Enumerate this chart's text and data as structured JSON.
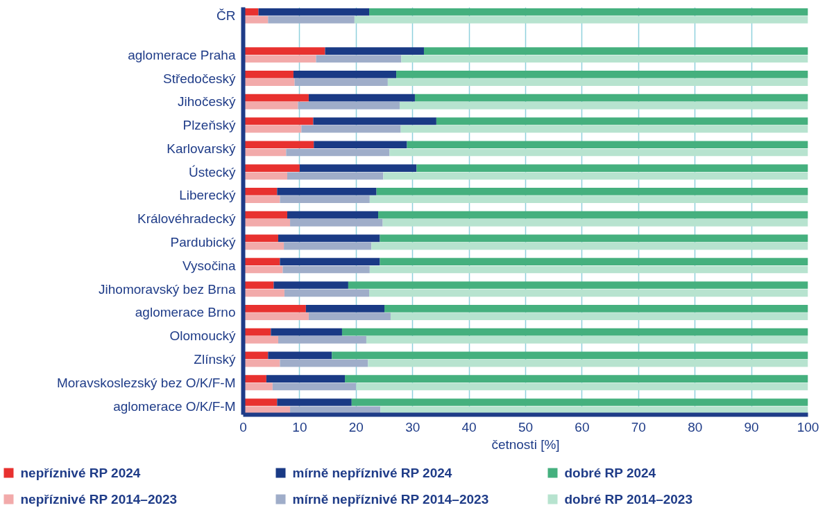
{
  "chart_data": {
    "type": "bar",
    "orientation": "horizontal",
    "stacked": true,
    "xlabel": "četnosti [%]",
    "categories": [
      "ČR",
      null,
      null,
      null,
      null,
      "aglomerace Praha",
      null,
      null,
      "Středočeský",
      null,
      null,
      "Jihočeský",
      null,
      null,
      "Plzeňský",
      null,
      null,
      "Karlovarský",
      null,
      null,
      "Ústecký",
      null,
      null,
      "Liberecký",
      null,
      null,
      "Královéhradecký",
      null,
      null,
      "Pardubický",
      null,
      null,
      "Vysočina",
      null,
      null,
      "Jihomoravský bez Brna",
      null,
      null,
      "aglomerace Brno",
      null,
      null,
      "Olomoucký",
      null,
      null,
      "Zlínský",
      null,
      null,
      "Moravskoslezský bez O/K/F-M",
      null,
      null,
      "aglomerace O/K/F-M",
      null
    ],
    "series": [
      {
        "name": "nepříznivé RP 2024",
        "color": "#e8312f",
        "values": [
          2.7,
          null,
          null,
          null,
          null,
          14.5,
          null,
          null,
          8.9,
          null,
          null,
          11.6,
          null,
          null,
          12.4,
          null,
          null,
          12.5,
          null,
          null,
          10.0,
          null,
          null,
          6.0,
          null,
          null,
          7.8,
          null,
          null,
          6.2,
          null,
          null,
          6.5,
          null,
          null,
          5.4,
          null,
          null,
          11.1,
          null,
          null,
          4.9,
          null,
          null,
          4.4,
          null,
          null,
          4.1,
          null,
          null,
          6.0,
          null
        ]
      },
      {
        "name": "mírně nepříznivé RP 2024",
        "color": "#1a3a85",
        "values": [
          19.6,
          null,
          null,
          null,
          null,
          17.5,
          null,
          null,
          18.2,
          null,
          null,
          18.8,
          null,
          null,
          21.8,
          null,
          null,
          16.5,
          null,
          null,
          20.7,
          null,
          null,
          17.6,
          null,
          null,
          16.1,
          null,
          null,
          18.0,
          null,
          null,
          17.7,
          null,
          null,
          13.2,
          null,
          null,
          13.9,
          null,
          null,
          12.6,
          null,
          null,
          11.3,
          null,
          null,
          13.9,
          null,
          null,
          13.2,
          null
        ]
      },
      {
        "name": "dobré RP 2024",
        "color": "#45b07e",
        "values": [
          77.7,
          null,
          null,
          null,
          null,
          68.0,
          null,
          null,
          72.9,
          null,
          null,
          69.6,
          null,
          null,
          65.8,
          null,
          null,
          71.0,
          null,
          null,
          69.3,
          null,
          null,
          76.4,
          null,
          null,
          76.1,
          null,
          null,
          75.8,
          null,
          null,
          75.8,
          null,
          null,
          81.4,
          null,
          null,
          75.0,
          null,
          null,
          82.5,
          null,
          null,
          84.3,
          null,
          null,
          82.0,
          null,
          null,
          80.8,
          null
        ]
      },
      {
        "name": "nepříznivé RP 2014–2023",
        "color": "#f2aaaa",
        "values": [
          null,
          4.4,
          null,
          null,
          null,
          null,
          12.9,
          null,
          null,
          9.1,
          null,
          null,
          9.7,
          null,
          null,
          10.3,
          null,
          null,
          7.6,
          null,
          null,
          7.8,
          null,
          null,
          6.5,
          null,
          null,
          8.3,
          null,
          null,
          7.2,
          null,
          null,
          7.0,
          null,
          null,
          7.3,
          null,
          null,
          11.6,
          null,
          null,
          6.2,
          null,
          null,
          6.5,
          null,
          null,
          5.2,
          null,
          null,
          8.3
        ]
      },
      {
        "name": "mírně nepříznivé RP 2014–2023",
        "color": "#9fadc9",
        "values": [
          null,
          15.3,
          null,
          null,
          null,
          null,
          15.1,
          null,
          null,
          16.5,
          null,
          null,
          18.0,
          null,
          null,
          17.6,
          null,
          null,
          18.3,
          null,
          null,
          17.0,
          null,
          null,
          15.9,
          null,
          null,
          16.4,
          null,
          null,
          15.5,
          null,
          null,
          15.4,
          null,
          null,
          15.0,
          null,
          null,
          14.5,
          null,
          null,
          15.6,
          null,
          null,
          15.6,
          null,
          null,
          14.8,
          null,
          null,
          16.0
        ]
      },
      {
        "name": "dobré RP 2014–2023",
        "color": "#b7e3cf",
        "values": [
          null,
          80.3,
          null,
          null,
          null,
          null,
          72.0,
          null,
          null,
          74.4,
          null,
          null,
          72.3,
          null,
          null,
          72.1,
          null,
          null,
          74.1,
          null,
          null,
          75.2,
          null,
          null,
          77.6,
          null,
          null,
          75.3,
          null,
          null,
          77.3,
          null,
          null,
          77.6,
          null,
          null,
          77.7,
          null,
          null,
          73.9,
          null,
          null,
          78.2,
          null,
          null,
          77.9,
          null,
          null,
          80.0,
          null,
          null,
          75.7
        ]
      }
    ],
    "xlim": [
      0,
      100
    ],
    "xticks": [
      0,
      10,
      20,
      30,
      40,
      50,
      60,
      70,
      80,
      90,
      100
    ],
    "grid": "x",
    "legend": "bottom"
  }
}
